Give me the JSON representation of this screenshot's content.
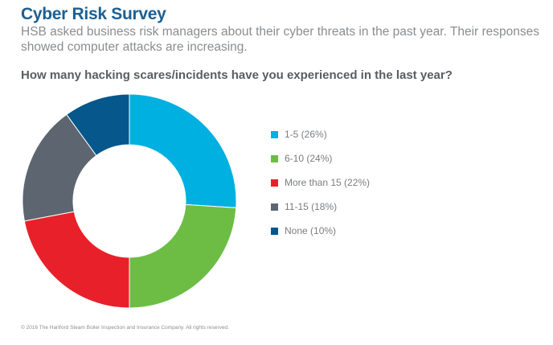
{
  "title": "Cyber Risk Survey",
  "subtitle": "HSB asked business risk managers about their cyber threats in the past year. Their responses showed computer attacks are increasing.",
  "question": "How many hacking scares/incidents have you experienced in the last year?",
  "footer": "© 2016 The Hartford Steam Boiler Inspection and Insurance Company. All rights reserved.",
  "chart_data": {
    "type": "pie",
    "variant": "donut",
    "title": "How many hacking scares/incidents have you experienced in the last year?",
    "legend_position": "right",
    "categories": [
      "1-5",
      "6-10",
      "More than 15",
      "11-15",
      "None"
    ],
    "values": [
      26,
      24,
      22,
      18,
      10
    ],
    "unit": "%",
    "legend_labels": [
      "1-5 (26%)",
      "6-10 (24%)",
      "More than 15 (22%)",
      "11-15 (18%)",
      "None (10%)"
    ],
    "colors": [
      "#00b0e0",
      "#6dbd45",
      "#e8202a",
      "#5d6670",
      "#05578c"
    ]
  }
}
